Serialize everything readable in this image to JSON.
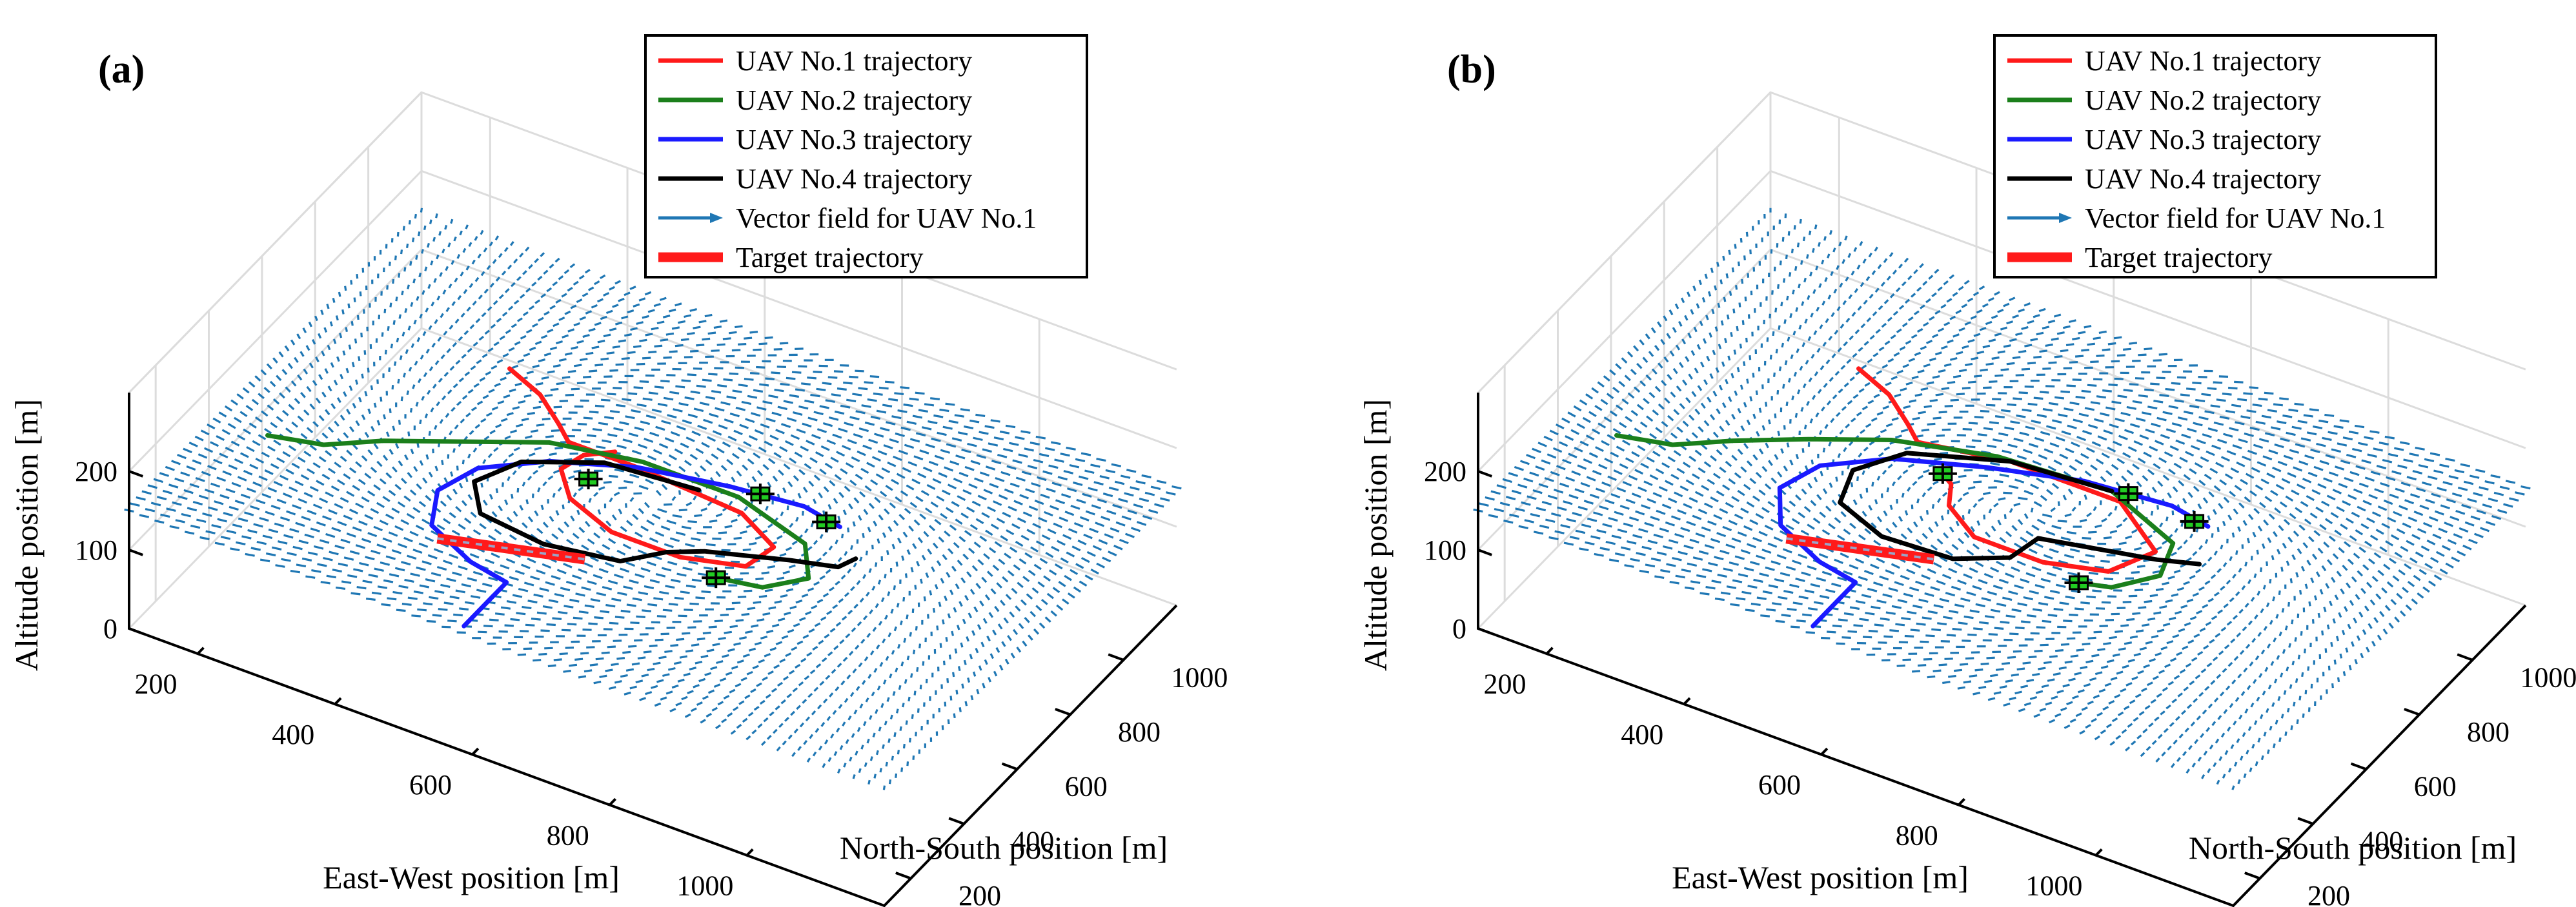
{
  "chart_data": [
    {
      "type": "3d-line-quiver",
      "panel": "(a)",
      "xlabel": "East-West position [m]",
      "ylabel": "North-South position [m]",
      "zlabel": "Altitude position [m]",
      "x_ticks": [
        "200",
        "400",
        "600",
        "800",
        "1000"
      ],
      "y_ticks": [
        "200",
        "400",
        "600",
        "800",
        "1000"
      ],
      "z_ticks": [
        "0",
        "100",
        "200"
      ],
      "xlim": [
        100,
        1200
      ],
      "ylim": [
        100,
        1200
      ],
      "zlim": [
        0,
        300
      ],
      "field_center": [
        650,
        650
      ],
      "legend": [
        {
          "label": "UAV No.1 trajectory",
          "color": "#ff1a1a",
          "style": "line"
        },
        {
          "label": "UAV No.2 trajectory",
          "color": "#1b7f1b",
          "style": "line"
        },
        {
          "label": "UAV No.3 trajectory",
          "color": "#1a1aff",
          "style": "line"
        },
        {
          "label": "UAV No.4 trajectory",
          "color": "#000000",
          "style": "line"
        },
        {
          "label": "Vector field for UAV No.1",
          "color": "#1f77b4",
          "style": "arrow"
        },
        {
          "label": "Target trajectory",
          "color": "#ff1a1a",
          "style": "thick"
        }
      ],
      "series": [
        {
          "name": "UAV No.1 trajectory",
          "color": "#ff1a1a",
          "points": [
            [
              360,
              860,
              150
            ],
            [
              420,
              820,
              150
            ],
            [
              470,
              760,
              150
            ],
            [
              500,
              720,
              150
            ],
            [
              600,
              720,
              150
            ],
            [
              760,
              700,
              150
            ],
            [
              830,
              640,
              150
            ],
            [
              820,
              560,
              150
            ],
            [
              740,
              520,
              150
            ],
            [
              640,
              520,
              150
            ],
            [
              560,
              570,
              150
            ],
            [
              520,
              640,
              150
            ],
            [
              530,
              700,
              150
            ],
            [
              560,
              740,
              150
            ]
          ]
        },
        {
          "name": "UAV No.2 trajectory",
          "color": "#1b7f1b",
          "points": [
            [
              170,
              440,
              150
            ],
            [
              240,
              470,
              150
            ],
            [
              300,
              540,
              150
            ],
            [
              390,
              620,
              150
            ],
            [
              480,
              700,
              150
            ],
            [
              600,
              740,
              150
            ],
            [
              740,
              740,
              150
            ],
            [
              860,
              680,
              150
            ],
            [
              900,
              590,
              150
            ],
            [
              860,
              520,
              150
            ],
            [
              800,
              500,
              150
            ]
          ]
        },
        {
          "name": "UAV No.3 trajectory",
          "color": "#1a1aff",
          "points": [
            [
              580,
              120,
              150
            ],
            [
              580,
              200,
              150
            ],
            [
              580,
              280,
              150
            ],
            [
              520,
              300,
              150
            ],
            [
              440,
              360,
              150
            ],
            [
              410,
              460,
              150
            ],
            [
              430,
              560,
              150
            ],
            [
              500,
              650,
              150
            ],
            [
              600,
              720,
              150
            ],
            [
              720,
              760,
              150
            ],
            [
              820,
              780,
              150
            ],
            [
              880,
              760,
              150
            ]
          ]
        },
        {
          "name": "UAV No.4 trajectory",
          "color": "#000000",
          "points": [
            [
              690,
              720,
              150
            ],
            [
              560,
              700,
              150
            ],
            [
              470,
              620,
              150
            ],
            [
              440,
              520,
              150
            ],
            [
              480,
              440,
              150
            ],
            [
              580,
              420,
              150
            ],
            [
              680,
              450,
              150
            ],
            [
              720,
              520,
              150
            ],
            [
              760,
              560,
              150
            ],
            [
              860,
              620,
              150
            ],
            [
              920,
              650,
              150
            ],
            [
              930,
              690,
              150
            ]
          ]
        },
        {
          "name": "Target trajectory",
          "color": "#ff1a1a",
          "points": [
            [
              460,
              330,
              150
            ],
            [
              640,
              420,
              150
            ]
          ]
        }
      ],
      "uav_markers": [
        [
          760,
          770,
          150
        ],
        [
          860,
          760,
          150
        ],
        [
          560,
          640,
          150
        ],
        [
          800,
          500,
          150
        ]
      ]
    },
    {
      "type": "3d-line-quiver",
      "panel": "(b)",
      "xlabel": "East-West position [m]",
      "ylabel": "North-South position [m]",
      "zlabel": "Altitude position [m]",
      "x_ticks": [
        "200",
        "400",
        "600",
        "800",
        "1000"
      ],
      "y_ticks": [
        "200",
        "400",
        "600",
        "800",
        "1000"
      ],
      "z_ticks": [
        "0",
        "100",
        "200"
      ],
      "xlim": [
        100,
        1200
      ],
      "ylim": [
        100,
        1200
      ],
      "zlim": [
        0,
        300
      ],
      "field_center": [
        700,
        660
      ],
      "legend": [
        {
          "label": "UAV No.1 trajectory",
          "color": "#ff1a1a",
          "style": "line"
        },
        {
          "label": "UAV No.2 trajectory",
          "color": "#1b7f1b",
          "style": "line"
        },
        {
          "label": "UAV No.3 trajectory",
          "color": "#1a1aff",
          "style": "line"
        },
        {
          "label": "UAV No.4 trajectory",
          "color": "#000000",
          "style": "line"
        },
        {
          "label": "Vector field for UAV No.1",
          "color": "#1f77b4",
          "style": "arrow"
        },
        {
          "label": "Target trajectory",
          "color": "#ff1a1a",
          "style": "thick"
        }
      ],
      "series": [
        {
          "name": "UAV No.1 trajectory",
          "color": "#ff1a1a",
          "points": [
            [
              360,
              860,
              150
            ],
            [
              420,
              820,
              150
            ],
            [
              470,
              760,
              150
            ],
            [
              500,
              720,
              150
            ],
            [
              620,
              760,
              150
            ],
            [
              780,
              760,
              150
            ],
            [
              870,
              660,
              150
            ],
            [
              840,
              560,
              150
            ],
            [
              760,
              520,
              150
            ],
            [
              660,
              520,
              150
            ],
            [
              600,
              580,
              150
            ],
            [
              580,
              640,
              150
            ],
            [
              560,
              660,
              150
            ]
          ]
        },
        {
          "name": "UAV No.2 trajectory",
          "color": "#1b7f1b",
          "points": [
            [
              170,
              440,
              150
            ],
            [
              240,
              470,
              150
            ],
            [
              300,
              540,
              150
            ],
            [
              380,
              620,
              150
            ],
            [
              470,
              700,
              150
            ],
            [
              600,
              760,
              150
            ],
            [
              760,
              780,
              150
            ],
            [
              880,
              700,
              150
            ],
            [
              900,
              600,
              150
            ],
            [
              860,
              520,
              150
            ],
            [
              820,
              500,
              150
            ]
          ]
        },
        {
          "name": "UAV No.3 trajectory",
          "color": "#1a1aff",
          "points": [
            [
              580,
              120,
              150
            ],
            [
              580,
              200,
              150
            ],
            [
              580,
              280,
              150
            ],
            [
              520,
              300,
              150
            ],
            [
              440,
              360,
              150
            ],
            [
              400,
              460,
              150
            ],
            [
              420,
              560,
              150
            ],
            [
              490,
              650,
              150
            ],
            [
              600,
              720,
              150
            ],
            [
              720,
              780,
              150
            ],
            [
              840,
              800,
              150
            ],
            [
              900,
              780,
              150
            ]
          ]
        },
        {
          "name": "UAV No.4 trajectory",
          "color": "#000000",
          "points": [
            [
              760,
              780,
              150
            ],
            [
              620,
              760,
              150
            ],
            [
              500,
              680,
              150
            ],
            [
              460,
              580,
              150
            ],
            [
              480,
              480,
              150
            ],
            [
              560,
              430,
              150
            ],
            [
              660,
              440,
              150
            ],
            [
              720,
              500,
              150
            ],
            [
              730,
              580,
              150
            ],
            [
              780,
              600,
              150
            ],
            [
              880,
              640,
              150
            ],
            [
              930,
              670,
              150
            ]
          ]
        },
        {
          "name": "Target trajectory",
          "color": "#ff1a1a",
          "points": [
            [
              460,
              330,
              150
            ],
            [
              640,
              420,
              150
            ]
          ]
        }
      ],
      "uav_markers": [
        [
          780,
          790,
          150
        ],
        [
          880,
          780,
          150
        ],
        [
          560,
          660,
          150
        ],
        [
          820,
          500,
          150
        ]
      ]
    }
  ]
}
